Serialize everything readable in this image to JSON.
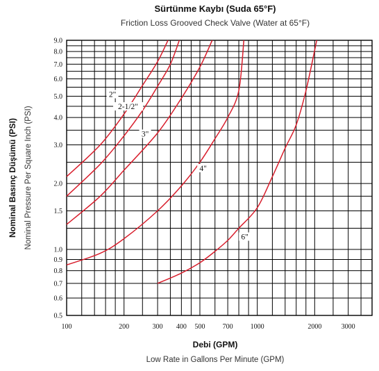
{
  "header": {
    "title": "Sürtünme Kaybı (Suda 65°F)",
    "subtitle": "Friction Loss Grooved Check Valve (Water at 65°F)"
  },
  "x_axis": {
    "title": "Debi (GPM)",
    "subtitle": "Low Rate in Gallons Per Minute (GPM)"
  },
  "y_axis": {
    "title": "Nominal Basınç Düşümü (PSI)",
    "subtitle": "Nominal Pressure Per Square Inch (PSI)"
  },
  "colors": {
    "curve": "#d81e2c",
    "grid": "#000000",
    "background": "#ffffff"
  },
  "chart_data": {
    "type": "line",
    "title": "Sürtünme Kaybı (Suda 65°F)",
    "subtitle": "Friction Loss Grooved Check Valve (Water at 65°F)",
    "xlabel": "Debi (GPM)",
    "ylabel": "Nominal Basınç Düşümü (PSI)",
    "x_scale": "log",
    "y_scale": "log",
    "xlim": [
      100,
      4000
    ],
    "ylim": [
      0.5,
      9.0
    ],
    "grid": true,
    "x_ticks": [
      {
        "value": 100,
        "label": "100"
      },
      {
        "value": 200,
        "label": "200"
      },
      {
        "value": 300,
        "label": "300"
      },
      {
        "value": 400,
        "label": "400"
      },
      {
        "value": 500,
        "label": "500"
      },
      {
        "value": 700,
        "label": "700"
      },
      {
        "value": 1000,
        "label": "1000"
      },
      {
        "value": 2000,
        "label": "2000"
      },
      {
        "value": 3000,
        "label": "3000"
      }
    ],
    "y_ticks": [
      {
        "value": 9.0,
        "label": "9.0"
      },
      {
        "value": 8.0,
        "label": "8.0"
      },
      {
        "value": 7.0,
        "label": "7.0"
      },
      {
        "value": 6.0,
        "label": "6.0"
      },
      {
        "value": 5.0,
        "label": "5.0"
      },
      {
        "value": 4.0,
        "label": "4.0"
      },
      {
        "value": 3.0,
        "label": "3.0"
      },
      {
        "value": 2.0,
        "label": "2.0"
      },
      {
        "value": 1.5,
        "label": "1.5"
      },
      {
        "value": 1.0,
        "label": "1.0"
      },
      {
        "value": 0.9,
        "label": "0.9"
      },
      {
        "value": 0.8,
        "label": "0.8"
      },
      {
        "value": 0.7,
        "label": "0.7"
      },
      {
        "value": 0.6,
        "label": "0.6"
      },
      {
        "value": 0.5,
        "label": "0.5"
      }
    ],
    "x_grid": [
      100,
      120,
      140,
      160,
      180,
      200,
      250,
      300,
      350,
      400,
      450,
      500,
      600,
      700,
      800,
      900,
      1000,
      1200,
      1400,
      1600,
      1800,
      2000,
      2500,
      3000,
      3500,
      4000
    ],
    "y_grid": [
      0.5,
      0.6,
      0.7,
      0.8,
      0.9,
      1.0,
      1.25,
      1.5,
      1.75,
      2.0,
      2.5,
      3.0,
      3.5,
      4.0,
      4.5,
      5.0,
      5.5,
      6.0,
      6.5,
      7.0,
      7.5,
      8.0,
      8.5,
      9.0
    ],
    "series": [
      {
        "name": "2\"",
        "points": [
          [
            100,
            2.15
          ],
          [
            150,
            3.0
          ],
          [
            200,
            4.15
          ],
          [
            250,
            5.6
          ],
          [
            300,
            7.2
          ],
          [
            340,
            9.0
          ]
        ],
        "label": {
          "x": 174,
          "y": 5.0
        }
      },
      {
        "name": "2-1/2\"",
        "points": [
          [
            100,
            1.75
          ],
          [
            150,
            2.45
          ],
          [
            200,
            3.3
          ],
          [
            250,
            4.3
          ],
          [
            300,
            5.55
          ],
          [
            350,
            7.0
          ],
          [
            390,
            9.0
          ]
        ],
        "label": {
          "x": 210,
          "y": 4.4
        }
      },
      {
        "name": "3\"",
        "points": [
          [
            100,
            1.3
          ],
          [
            150,
            1.75
          ],
          [
            200,
            2.3
          ],
          [
            300,
            3.4
          ],
          [
            400,
            4.9
          ],
          [
            500,
            6.8
          ],
          [
            580,
            9.0
          ]
        ],
        "label": {
          "x": 258,
          "y": 3.3
        }
      },
      {
        "name": "4\"",
        "points": [
          [
            100,
            0.85
          ],
          [
            150,
            0.96
          ],
          [
            200,
            1.12
          ],
          [
            300,
            1.5
          ],
          [
            400,
            1.95
          ],
          [
            500,
            2.5
          ],
          [
            600,
            3.2
          ],
          [
            700,
            4.0
          ],
          [
            800,
            5.3
          ],
          [
            850,
            9.0
          ]
        ],
        "label": {
          "x": 520,
          "y": 2.3
        }
      },
      {
        "name": "6\"",
        "points": [
          [
            300,
            0.7
          ],
          [
            400,
            0.78
          ],
          [
            500,
            0.87
          ],
          [
            600,
            0.98
          ],
          [
            700,
            1.1
          ],
          [
            800,
            1.25
          ],
          [
            1000,
            1.55
          ],
          [
            1200,
            2.15
          ],
          [
            1400,
            2.9
          ],
          [
            1600,
            3.7
          ],
          [
            1800,
            5.3
          ],
          [
            2050,
            9.0
          ]
        ],
        "label": {
          "x": 860,
          "y": 1.12
        }
      }
    ]
  }
}
